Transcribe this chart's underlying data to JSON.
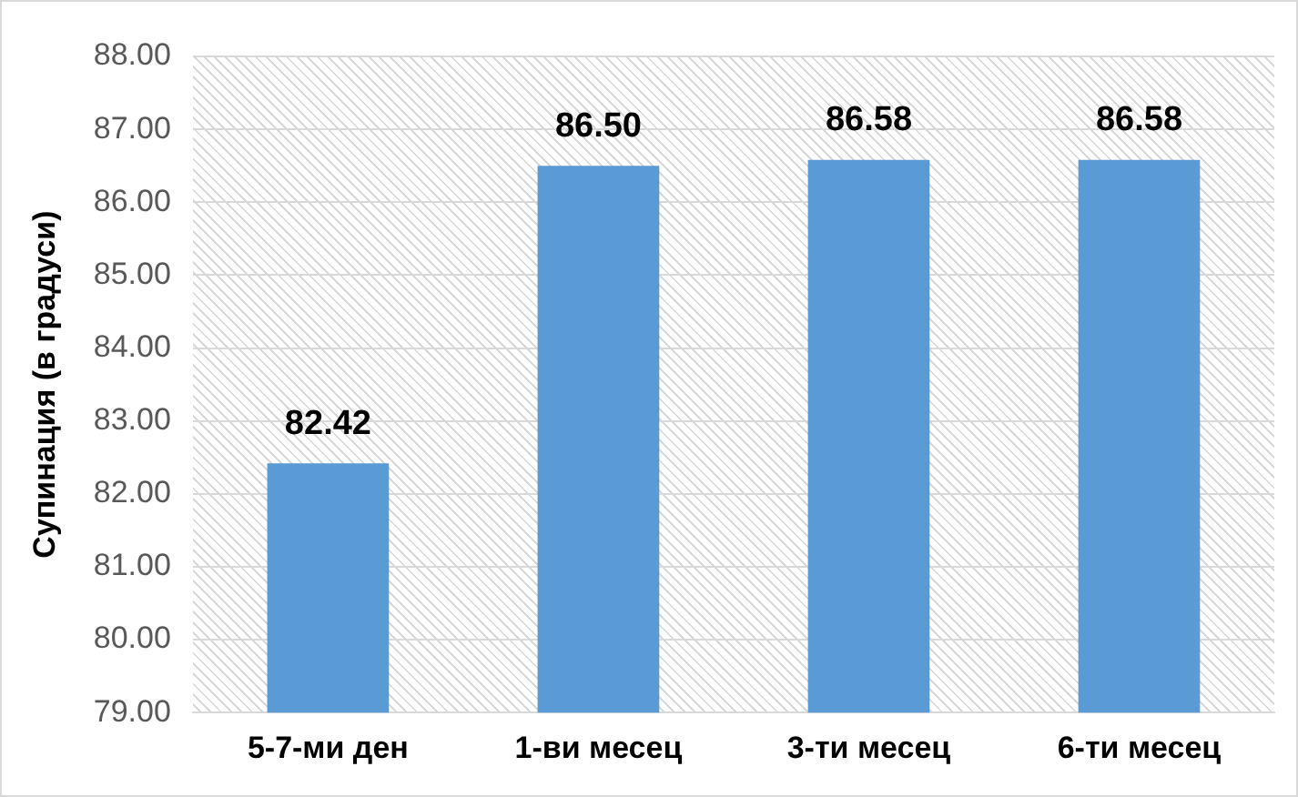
{
  "chart_data": {
    "type": "bar",
    "ylabel": "Супинация (в градуси)",
    "categories": [
      "5-7-ми ден",
      "1-ви месец",
      "3-ти месец",
      "6-ти месец"
    ],
    "values": [
      82.42,
      86.5,
      86.58,
      86.58
    ],
    "color": "#5b9bd5",
    "ylim": [
      79,
      88
    ],
    "yticks": [
      {
        "value": 79,
        "label": "79.00"
      },
      {
        "value": 80,
        "label": "80.00"
      },
      {
        "value": 81,
        "label": "81.00"
      },
      {
        "value": 82,
        "label": "82.00"
      },
      {
        "value": 83,
        "label": "83.00"
      },
      {
        "value": 84,
        "label": "84.00"
      },
      {
        "value": 85,
        "label": "85.00"
      },
      {
        "value": 86,
        "label": "86.00"
      },
      {
        "value": 87,
        "label": "87.00"
      },
      {
        "value": 88,
        "label": "88.00"
      }
    ],
    "value_labels": [
      "82.42",
      "86.50",
      "86.58",
      "86.58"
    ],
    "grid": "y"
  }
}
